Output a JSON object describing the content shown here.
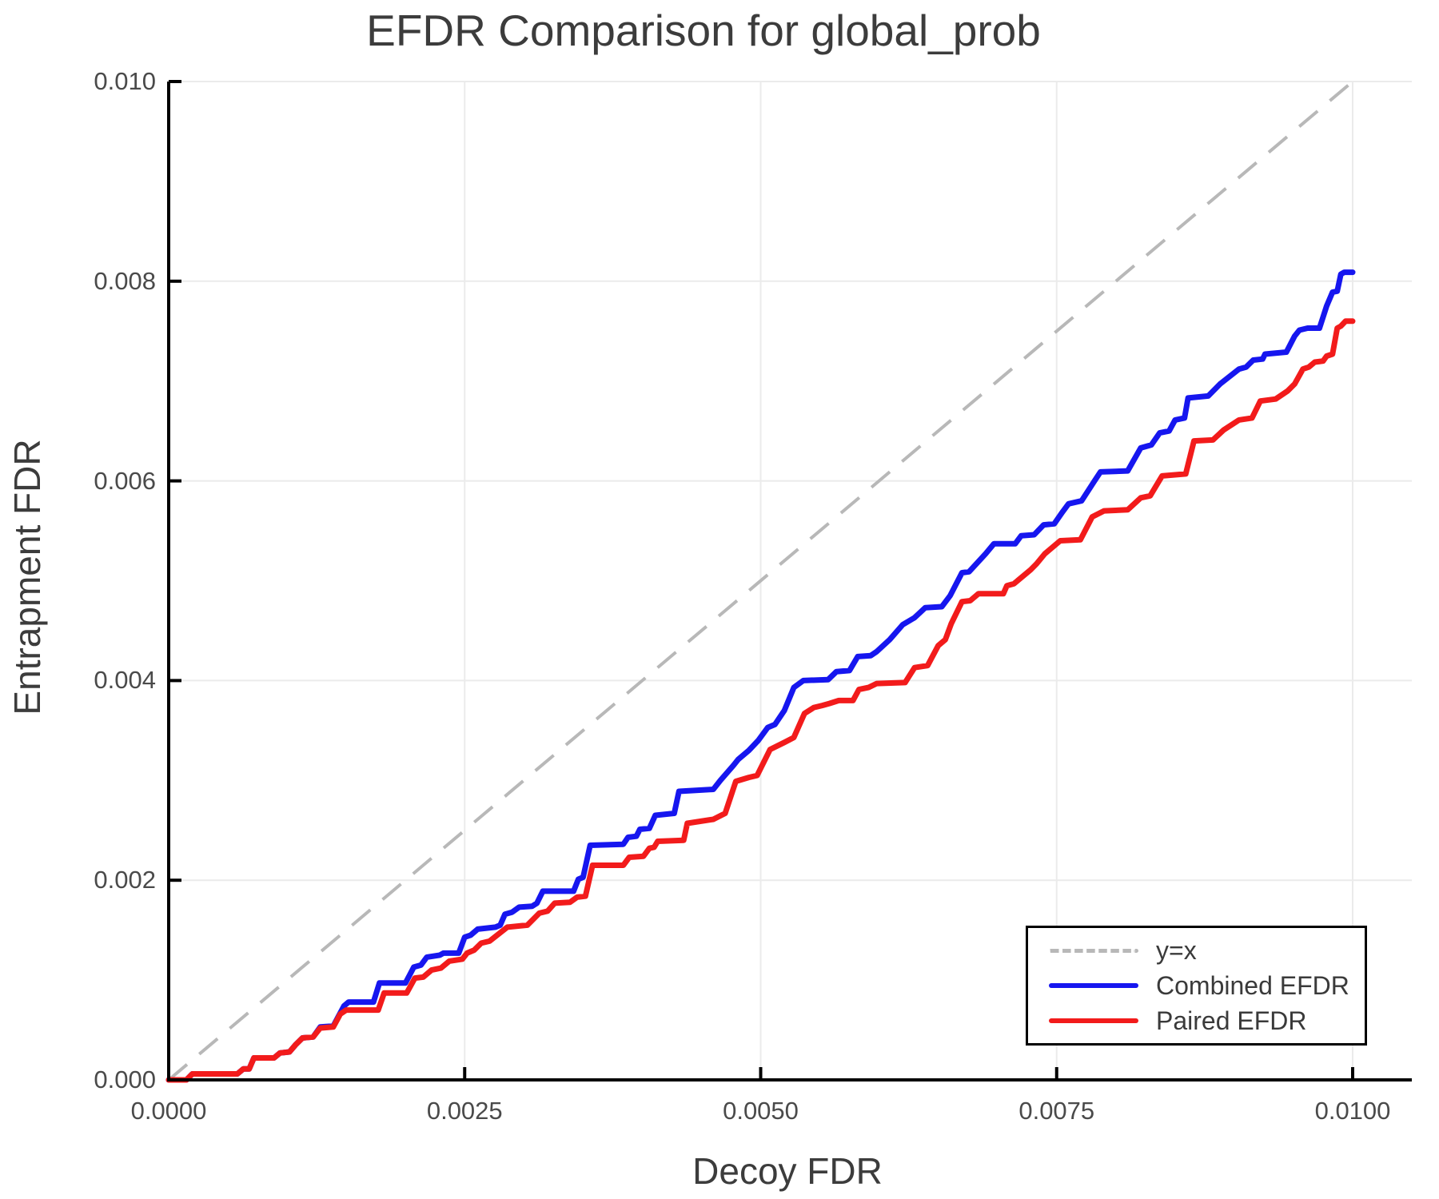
{
  "title": "EFDR Comparison for global_prob",
  "axes": {
    "xlabel": "Decoy FDR",
    "ylabel": "Entrapment FDR"
  },
  "legend": {
    "entries": [
      {
        "label": "y=x",
        "style": "dashed",
        "color": "#b8b8b8"
      },
      {
        "label": "Combined EFDR",
        "style": "solid",
        "color": "#1616ef"
      },
      {
        "label": "Paired EFDR",
        "style": "solid",
        "color": "#f21b1b"
      }
    ]
  },
  "chart_data": {
    "type": "line",
    "title": "EFDR Comparison for global_prob",
    "xlabel": "Decoy FDR",
    "ylabel": "Entrapment FDR",
    "xlim": [
      0,
      0.0105
    ],
    "ylim": [
      0,
      0.01
    ],
    "grid": true,
    "grid_color": "#ebebeb",
    "spine_color": "#000000",
    "legend_position": "lower right",
    "xticks": [
      {
        "v": 0.0,
        "label": "0.0000"
      },
      {
        "v": 0.0025,
        "label": "0.0025"
      },
      {
        "v": 0.005,
        "label": "0.0050"
      },
      {
        "v": 0.0075,
        "label": "0.0075"
      },
      {
        "v": 0.01,
        "label": "0.0100"
      }
    ],
    "yticks": [
      {
        "v": 0.0,
        "label": "0.000"
      },
      {
        "v": 0.002,
        "label": "0.002"
      },
      {
        "v": 0.004,
        "label": "0.004"
      },
      {
        "v": 0.006,
        "label": "0.006"
      },
      {
        "v": 0.008,
        "label": "0.008"
      },
      {
        "v": 0.01,
        "label": "0.010"
      }
    ],
    "reference_line": {
      "name": "y=x",
      "style": "dashed",
      "color": "#b8b8b8",
      "from": [
        0,
        0
      ],
      "to": [
        0.01,
        0.01
      ]
    },
    "series": [
      {
        "name": "Combined EFDR",
        "color": "#1616ef",
        "width": 7,
        "points": [
          [
            0,
            0
          ],
          [
            0.00015,
            0
          ],
          [
            0.0002,
            6e-05
          ],
          [
            0.00058,
            6e-05
          ],
          [
            0.00063,
            0.00011
          ],
          [
            0.00068,
            0.00011
          ],
          [
            0.00072,
            0.00022
          ],
          [
            0.00089,
            0.00022
          ],
          [
            0.00094,
            0.00027
          ],
          [
            0.00102,
            0.00028
          ],
          [
            0.00107,
            0.00035
          ],
          [
            0.00113,
            0.00042
          ],
          [
            0.00122,
            0.00043
          ],
          [
            0.00128,
            0.00053
          ],
          [
            0.00139,
            0.00054
          ],
          [
            0.00148,
            0.00074
          ],
          [
            0.00152,
            0.00078
          ],
          [
            0.00173,
            0.00078
          ],
          [
            0.00178,
            0.00097
          ],
          [
            0.002,
            0.00097
          ],
          [
            0.00207,
            0.00113
          ],
          [
            0.00213,
            0.00115
          ],
          [
            0.00218,
            0.00123
          ],
          [
            0.00229,
            0.00125
          ],
          [
            0.00232,
            0.00127
          ],
          [
            0.00245,
            0.00127
          ],
          [
            0.0025,
            0.00143
          ],
          [
            0.00255,
            0.00145
          ],
          [
            0.00261,
            0.00151
          ],
          [
            0.00276,
            0.00153
          ],
          [
            0.0028,
            0.00155
          ],
          [
            0.00284,
            0.00166
          ],
          [
            0.0029,
            0.00168
          ],
          [
            0.00296,
            0.00173
          ],
          [
            0.00307,
            0.00174
          ],
          [
            0.00311,
            0.00177
          ],
          [
            0.00316,
            0.00189
          ],
          [
            0.00342,
            0.00189
          ],
          [
            0.00346,
            0.00201
          ],
          [
            0.0035,
            0.00203
          ],
          [
            0.00356,
            0.00235
          ],
          [
            0.00384,
            0.00236
          ],
          [
            0.00388,
            0.00243
          ],
          [
            0.00395,
            0.00244
          ],
          [
            0.00398,
            0.00251
          ],
          [
            0.00406,
            0.00252
          ],
          [
            0.00411,
            0.00265
          ],
          [
            0.00427,
            0.00267
          ],
          [
            0.00431,
            0.00289
          ],
          [
            0.0046,
            0.00291
          ],
          [
            0.00466,
            0.003
          ],
          [
            0.00477,
            0.00315
          ],
          [
            0.00481,
            0.00321
          ],
          [
            0.0049,
            0.0033
          ],
          [
            0.00498,
            0.0034
          ],
          [
            0.00506,
            0.00353
          ],
          [
            0.00512,
            0.00356
          ],
          [
            0.0052,
            0.0037
          ],
          [
            0.00528,
            0.00393
          ],
          [
            0.00536,
            0.004
          ],
          [
            0.00557,
            0.00401
          ],
          [
            0.00564,
            0.00409
          ],
          [
            0.00575,
            0.0041
          ],
          [
            0.00582,
            0.00424
          ],
          [
            0.00593,
            0.00425
          ],
          [
            0.00598,
            0.00429
          ],
          [
            0.00609,
            0.00441
          ],
          [
            0.0062,
            0.00456
          ],
          [
            0.0063,
            0.00463
          ],
          [
            0.00639,
            0.00473
          ],
          [
            0.00653,
            0.00474
          ],
          [
            0.0066,
            0.00485
          ],
          [
            0.0067,
            0.00508
          ],
          [
            0.00676,
            0.00509
          ],
          [
            0.0069,
            0.00527
          ],
          [
            0.00697,
            0.00537
          ],
          [
            0.00715,
            0.00537
          ],
          [
            0.0072,
            0.00545
          ],
          [
            0.00731,
            0.00546
          ],
          [
            0.00739,
            0.00556
          ],
          [
            0.00748,
            0.00557
          ],
          [
            0.00755,
            0.00569
          ],
          [
            0.0076,
            0.00577
          ],
          [
            0.00771,
            0.0058
          ],
          [
            0.00782,
            0.006
          ],
          [
            0.00787,
            0.00609
          ],
          [
            0.0081,
            0.0061
          ],
          [
            0.00821,
            0.00633
          ],
          [
            0.0083,
            0.00636
          ],
          [
            0.00837,
            0.00648
          ],
          [
            0.00845,
            0.0065
          ],
          [
            0.0085,
            0.00661
          ],
          [
            0.00858,
            0.00663
          ],
          [
            0.00861,
            0.00683
          ],
          [
            0.00878,
            0.00685
          ],
          [
            0.00888,
            0.00697
          ],
          [
            0.00904,
            0.00712
          ],
          [
            0.0091,
            0.00714
          ],
          [
            0.00916,
            0.00721
          ],
          [
            0.00924,
            0.00722
          ],
          [
            0.00926,
            0.00727
          ],
          [
            0.00944,
            0.00729
          ],
          [
            0.00951,
            0.00745
          ],
          [
            0.00955,
            0.00751
          ],
          [
            0.00962,
            0.00753
          ],
          [
            0.00972,
            0.00753
          ],
          [
            0.00978,
            0.00775
          ],
          [
            0.00983,
            0.00789
          ],
          [
            0.00987,
            0.0079
          ],
          [
            0.0099,
            0.00807
          ],
          [
            0.00993,
            0.00809
          ],
          [
            0.01,
            0.00809
          ]
        ]
      },
      {
        "name": "Paired EFDR",
        "color": "#f21b1b",
        "width": 7,
        "points": [
          [
            0,
            0
          ],
          [
            0.00015,
            0
          ],
          [
            0.0002,
            6e-05
          ],
          [
            0.00058,
            6e-05
          ],
          [
            0.00063,
            0.00011
          ],
          [
            0.00068,
            0.00011
          ],
          [
            0.00072,
            0.00022
          ],
          [
            0.00089,
            0.00022
          ],
          [
            0.00094,
            0.00027
          ],
          [
            0.00102,
            0.00028
          ],
          [
            0.00107,
            0.00035
          ],
          [
            0.00113,
            0.00042
          ],
          [
            0.00122,
            0.00043
          ],
          [
            0.00128,
            0.00052
          ],
          [
            0.00139,
            0.00053
          ],
          [
            0.00145,
            0.00066
          ],
          [
            0.0015,
            0.0007
          ],
          [
            0.00177,
            0.0007
          ],
          [
            0.00182,
            0.00087
          ],
          [
            0.00201,
            0.00087
          ],
          [
            0.00208,
            0.00102
          ],
          [
            0.00215,
            0.00103
          ],
          [
            0.00222,
            0.0011
          ],
          [
            0.0023,
            0.00112
          ],
          [
            0.00237,
            0.00119
          ],
          [
            0.00248,
            0.00121
          ],
          [
            0.00252,
            0.00127
          ],
          [
            0.00258,
            0.0013
          ],
          [
            0.00264,
            0.00137
          ],
          [
            0.00271,
            0.00139
          ],
          [
            0.00286,
            0.00153
          ],
          [
            0.00303,
            0.00155
          ],
          [
            0.00313,
            0.00167
          ],
          [
            0.0032,
            0.00169
          ],
          [
            0.00326,
            0.00177
          ],
          [
            0.00339,
            0.00178
          ],
          [
            0.00345,
            0.00183
          ],
          [
            0.00352,
            0.00184
          ],
          [
            0.00358,
            0.00215
          ],
          [
            0.00384,
            0.00215
          ],
          [
            0.00389,
            0.00223
          ],
          [
            0.00401,
            0.00224
          ],
          [
            0.00406,
            0.00232
          ],
          [
            0.0041,
            0.00233
          ],
          [
            0.00413,
            0.00239
          ],
          [
            0.00435,
            0.0024
          ],
          [
            0.00438,
            0.00257
          ],
          [
            0.0046,
            0.00261
          ],
          [
            0.0047,
            0.00267
          ],
          [
            0.00479,
            0.00299
          ],
          [
            0.0049,
            0.00303
          ],
          [
            0.00497,
            0.00305
          ],
          [
            0.00508,
            0.00331
          ],
          [
            0.0052,
            0.00338
          ],
          [
            0.00528,
            0.00343
          ],
          [
            0.00537,
            0.00367
          ],
          [
            0.00545,
            0.00373
          ],
          [
            0.00552,
            0.00375
          ],
          [
            0.00558,
            0.00377
          ],
          [
            0.00566,
            0.0038
          ],
          [
            0.00578,
            0.0038
          ],
          [
            0.00583,
            0.00391
          ],
          [
            0.00591,
            0.00393
          ],
          [
            0.00598,
            0.00397
          ],
          [
            0.00622,
            0.00398
          ],
          [
            0.0063,
            0.00413
          ],
          [
            0.00641,
            0.00415
          ],
          [
            0.0065,
            0.00435
          ],
          [
            0.00656,
            0.00441
          ],
          [
            0.00661,
            0.00457
          ],
          [
            0.0067,
            0.00479
          ],
          [
            0.00677,
            0.0048
          ],
          [
            0.00684,
            0.00487
          ],
          [
            0.00705,
            0.00487
          ],
          [
            0.00708,
            0.00495
          ],
          [
            0.00714,
            0.00497
          ],
          [
            0.00728,
            0.00511
          ],
          [
            0.00733,
            0.00517
          ],
          [
            0.0074,
            0.00527
          ],
          [
            0.00753,
            0.0054
          ],
          [
            0.0077,
            0.00541
          ],
          [
            0.0078,
            0.00564
          ],
          [
            0.0079,
            0.0057
          ],
          [
            0.0081,
            0.00571
          ],
          [
            0.00821,
            0.00583
          ],
          [
            0.00829,
            0.00585
          ],
          [
            0.00839,
            0.00605
          ],
          [
            0.00859,
            0.00607
          ],
          [
            0.00866,
            0.0064
          ],
          [
            0.00882,
            0.00641
          ],
          [
            0.00891,
            0.00651
          ],
          [
            0.00904,
            0.00661
          ],
          [
            0.00915,
            0.00663
          ],
          [
            0.00922,
            0.0068
          ],
          [
            0.00935,
            0.00682
          ],
          [
            0.00945,
            0.0069
          ],
          [
            0.00951,
            0.00697
          ],
          [
            0.00958,
            0.00712
          ],
          [
            0.00963,
            0.00714
          ],
          [
            0.00968,
            0.00719
          ],
          [
            0.00975,
            0.0072
          ],
          [
            0.00978,
            0.00725
          ],
          [
            0.00983,
            0.00727
          ],
          [
            0.00987,
            0.00753
          ],
          [
            0.0099,
            0.00755
          ],
          [
            0.00994,
            0.0076
          ],
          [
            0.01,
            0.0076
          ]
        ]
      }
    ]
  }
}
